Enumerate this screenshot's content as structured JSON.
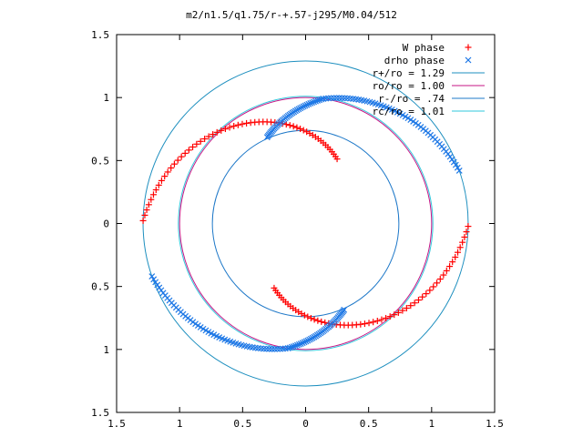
{
  "chart_data": {
    "type": "scatter",
    "title": "m2/n1.5/q1.75/r-+.57-j295/M0.04/512",
    "xlabel": "",
    "ylabel": "",
    "xlim": [
      -1.5,
      1.5
    ],
    "ylim": [
      -1.5,
      1.5
    ],
    "x_ticks": [
      "1.5",
      "1",
      "0.5",
      "0",
      "0.5",
      "1",
      "1.5"
    ],
    "y_ticks": [
      "1.5",
      "1",
      "0.5",
      "0",
      "0.5",
      "1",
      "1.5"
    ],
    "grid": false,
    "legend_position": "top-right",
    "series": [
      {
        "name": "W phase",
        "marker": "+",
        "color": "#ff0000",
        "arcs": [
          {
            "r_start": 1.29,
            "r_end": 0.57,
            "theta_start_deg": 179,
            "theta_end_deg": 64,
            "points": 60
          },
          {
            "r_start": 1.29,
            "r_end": 0.57,
            "theta_start_deg": -1,
            "theta_end_deg": -116,
            "points": 60
          }
        ]
      },
      {
        "name": "drho phase",
        "marker": "x",
        "color": "#1e78e6",
        "arcs": [
          {
            "r_start": 0.75,
            "r_end": 1.0,
            "theta_start_deg": 114,
            "theta_end_deg": 82,
            "points": 40
          },
          {
            "r_start": 1.0,
            "r_end": 1.29,
            "theta_start_deg": 82,
            "theta_end_deg": 19,
            "points": 55
          },
          {
            "r_start": 0.75,
            "r_end": 1.0,
            "theta_start_deg": -66,
            "theta_end_deg": -98,
            "points": 40
          },
          {
            "r_start": 1.0,
            "r_end": 1.29,
            "theta_start_deg": -98,
            "theta_end_deg": -161,
            "points": 55
          }
        ]
      }
    ],
    "circles": [
      {
        "name": "r+/ro = 1.29",
        "r": 1.29,
        "color": "#1e8fbf"
      },
      {
        "name": "ro/ro = 1.00",
        "r": 1.0,
        "color": "#c71585"
      },
      {
        "name": "r-/ro = .74",
        "r": 0.74,
        "color": "#1e78c8"
      },
      {
        "name": "rc/ro = 1.01",
        "r": 1.01,
        "color": "#32c8dc"
      }
    ]
  }
}
